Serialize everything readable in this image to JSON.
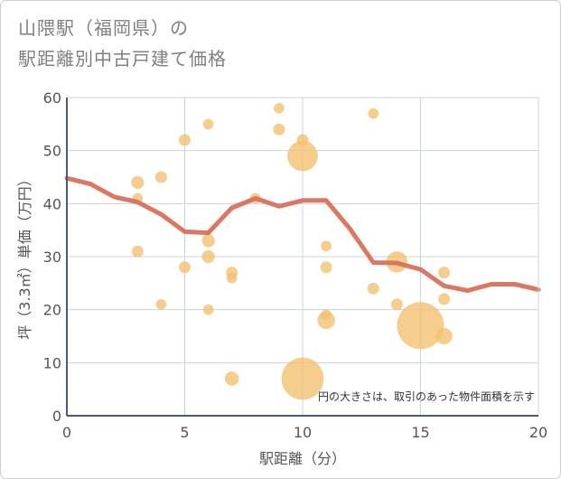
{
  "page": {
    "title_line1": "山隈駅（福岡県）の",
    "title_line2": "駅距離別中古戸建て価格"
  },
  "chart_data": {
    "type": "scatter",
    "title": "山隈駅（福岡県）の駅距離別中古戸建て価格",
    "xlabel": "駅距離（分）",
    "ylabel": "坪（3.3㎡）単価（万円）",
    "xlim": [
      0,
      20
    ],
    "ylim": [
      0,
      60
    ],
    "xticks": [
      0,
      5,
      10,
      15,
      20
    ],
    "yticks": [
      0,
      10,
      20,
      30,
      40,
      50,
      60
    ],
    "grid": true,
    "annotation": "円の大きさは、取引のあった物件面積を示す",
    "colors": {
      "points": "#f2c070",
      "line": "#d9705a",
      "grid": "#c8d4e0",
      "axis": "#4a5a7a"
    },
    "points": [
      {
        "x": 3,
        "y": 44,
        "size": 1.1
      },
      {
        "x": 3,
        "y": 41,
        "size": 0.9
      },
      {
        "x": 3,
        "y": 31,
        "size": 1.0
      },
      {
        "x": 4,
        "y": 45,
        "size": 1.0
      },
      {
        "x": 4,
        "y": 21,
        "size": 0.9
      },
      {
        "x": 5,
        "y": 52,
        "size": 1.0
      },
      {
        "x": 5,
        "y": 28,
        "size": 1.0
      },
      {
        "x": 6,
        "y": 55,
        "size": 0.9
      },
      {
        "x": 6,
        "y": 33,
        "size": 1.1
      },
      {
        "x": 6,
        "y": 30,
        "size": 1.1
      },
      {
        "x": 6,
        "y": 20,
        "size": 0.9
      },
      {
        "x": 7,
        "y": 27,
        "size": 1.0
      },
      {
        "x": 7,
        "y": 26,
        "size": 0.9
      },
      {
        "x": 7,
        "y": 7,
        "size": 1.2
      },
      {
        "x": 8,
        "y": 41,
        "size": 0.9
      },
      {
        "x": 9,
        "y": 58,
        "size": 0.9
      },
      {
        "x": 9,
        "y": 54,
        "size": 1.0
      },
      {
        "x": 10,
        "y": 52,
        "size": 1.0
      },
      {
        "x": 10,
        "y": 49,
        "size": 2.6
      },
      {
        "x": 10,
        "y": 7,
        "size": 3.6
      },
      {
        "x": 11,
        "y": 32,
        "size": 0.9
      },
      {
        "x": 11,
        "y": 28,
        "size": 1.0
      },
      {
        "x": 11,
        "y": 19,
        "size": 0.9
      },
      {
        "x": 11,
        "y": 18,
        "size": 1.5
      },
      {
        "x": 13,
        "y": 57,
        "size": 0.9
      },
      {
        "x": 13,
        "y": 24,
        "size": 1.0
      },
      {
        "x": 14,
        "y": 29,
        "size": 1.8
      },
      {
        "x": 14,
        "y": 21,
        "size": 1.0
      },
      {
        "x": 15,
        "y": 17,
        "size": 4.0
      },
      {
        "x": 16,
        "y": 27,
        "size": 1.0
      },
      {
        "x": 16,
        "y": 22,
        "size": 1.0
      },
      {
        "x": 16,
        "y": 15,
        "size": 1.4
      }
    ],
    "trend": {
      "x": [
        0,
        1,
        2,
        3,
        4,
        5,
        6,
        7,
        8,
        9,
        10,
        11,
        12,
        13,
        14,
        15,
        16,
        17,
        18,
        19,
        20
      ],
      "y": [
        44.8,
        43.7,
        41.3,
        40.3,
        38.0,
        34.7,
        34.5,
        39.2,
        41.0,
        39.5,
        40.6,
        40.6,
        35.3,
        28.9,
        28.8,
        27.6,
        24.5,
        23.6,
        24.8,
        24.8,
        23.8
      ]
    }
  }
}
